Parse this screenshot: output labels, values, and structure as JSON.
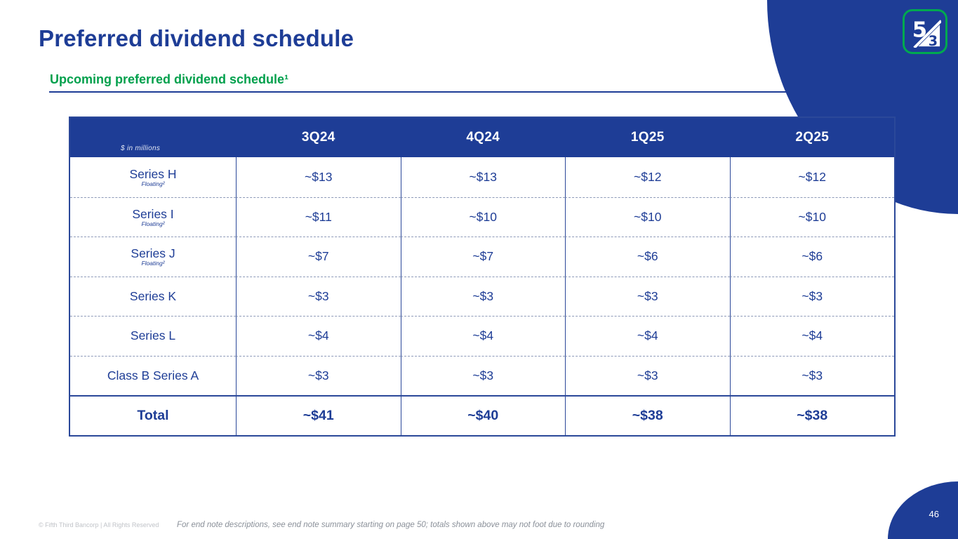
{
  "slide": {
    "title": "Preferred dividend schedule",
    "subtitle": "Upcoming preferred dividend schedule¹",
    "page_number": "46",
    "footer_copyright": "© Fifth Third Bancorp | All Rights Reserved",
    "footer_endnote": "For end note descriptions, see end note summary starting on page 50; totals shown above may not foot due to rounding"
  },
  "logo": {
    "five": "5",
    "three": "3"
  },
  "colors": {
    "navy": "#1e3d96",
    "green": "#00a04c",
    "logo_green": "#00a94f",
    "dashed_line": "#8d99b8"
  },
  "table": {
    "unit_label": "$ in millions",
    "columns": [
      "3Q24",
      "4Q24",
      "1Q25",
      "2Q25"
    ],
    "rows": [
      {
        "label": "Series H",
        "sublabel": "Floating²",
        "values": [
          "~$13",
          "~$13",
          "~$12",
          "~$12"
        ]
      },
      {
        "label": "Series I",
        "sublabel": "Floating²",
        "values": [
          "~$11",
          "~$10",
          "~$10",
          "~$10"
        ]
      },
      {
        "label": "Series J",
        "sublabel": "Floating²",
        "values": [
          "~$7",
          "~$7",
          "~$6",
          "~$6"
        ]
      },
      {
        "label": "Series K",
        "sublabel": "",
        "values": [
          "~$3",
          "~$3",
          "~$3",
          "~$3"
        ]
      },
      {
        "label": "Series L",
        "sublabel": "",
        "values": [
          "~$4",
          "~$4",
          "~$4",
          "~$4"
        ]
      },
      {
        "label": "Class B Series A",
        "sublabel": "",
        "values": [
          "~$3",
          "~$3",
          "~$3",
          "~$3"
        ]
      }
    ],
    "total_row": {
      "label": "Total",
      "values": [
        "~$41",
        "~$40",
        "~$38",
        "~$38"
      ]
    }
  }
}
